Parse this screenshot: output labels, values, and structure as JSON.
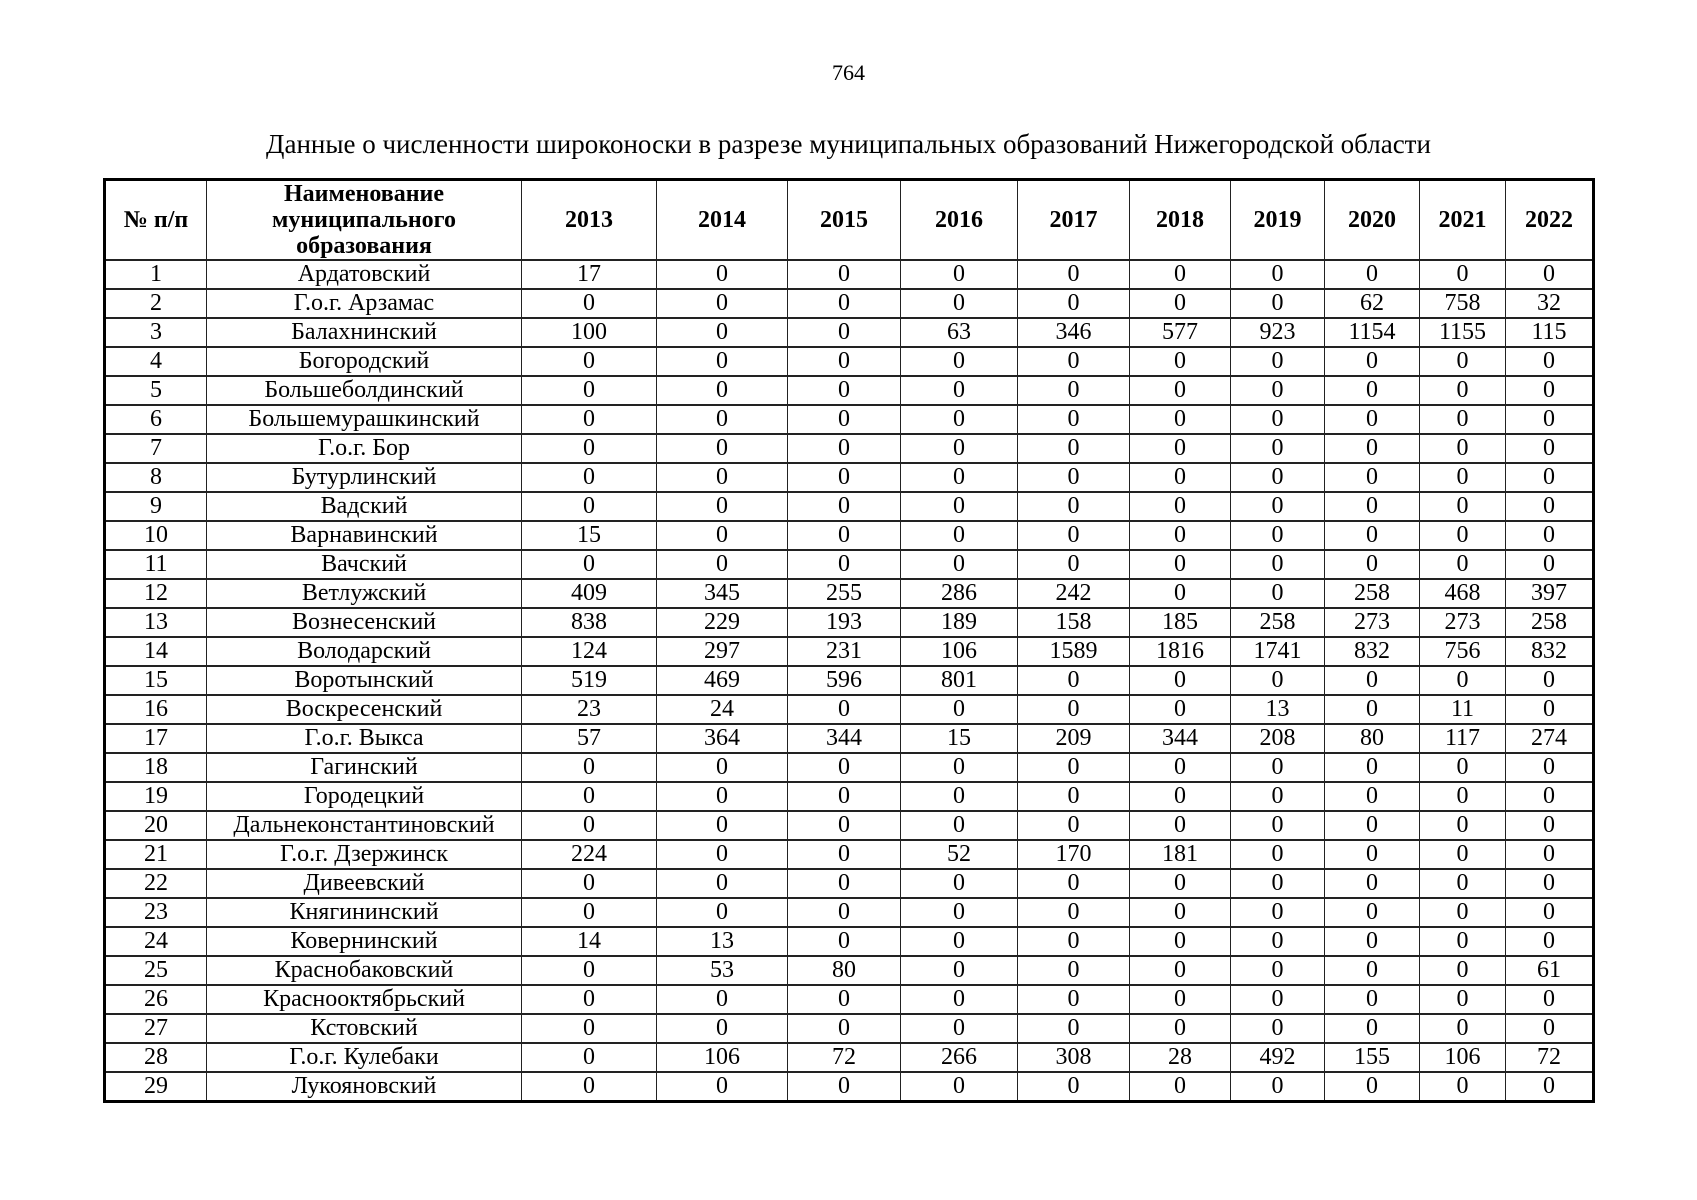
{
  "page": {
    "number": "764",
    "title": "Данные о численности широконоски в разрезе муниципальных образований Нижегородской области"
  },
  "table": {
    "headers": {
      "num": "№ п/п",
      "name": "Наименование муниципального образования",
      "years": [
        "2013",
        "2014",
        "2015",
        "2016",
        "2017",
        "2018",
        "2019",
        "2020",
        "2021",
        "2022"
      ]
    },
    "rows": [
      {
        "num": "1",
        "name": "Ардатовский",
        "values": [
          "17",
          "0",
          "0",
          "0",
          "0",
          "0",
          "0",
          "0",
          "0",
          "0"
        ]
      },
      {
        "num": "2",
        "name": "Г.о.г. Арзамас",
        "values": [
          "0",
          "0",
          "0",
          "0",
          "0",
          "0",
          "0",
          "62",
          "758",
          "32"
        ]
      },
      {
        "num": "3",
        "name": "Балахнинский",
        "values": [
          "100",
          "0",
          "0",
          "63",
          "346",
          "577",
          "923",
          "1154",
          "1155",
          "115"
        ]
      },
      {
        "num": "4",
        "name": "Богородский",
        "values": [
          "0",
          "0",
          "0",
          "0",
          "0",
          "0",
          "0",
          "0",
          "0",
          "0"
        ]
      },
      {
        "num": "5",
        "name": "Большеболдинский",
        "values": [
          "0",
          "0",
          "0",
          "0",
          "0",
          "0",
          "0",
          "0",
          "0",
          "0"
        ]
      },
      {
        "num": "6",
        "name": "Большемурашкинский",
        "values": [
          "0",
          "0",
          "0",
          "0",
          "0",
          "0",
          "0",
          "0",
          "0",
          "0"
        ]
      },
      {
        "num": "7",
        "name": "Г.о.г. Бор",
        "values": [
          "0",
          "0",
          "0",
          "0",
          "0",
          "0",
          "0",
          "0",
          "0",
          "0"
        ]
      },
      {
        "num": "8",
        "name": "Бутурлинский",
        "values": [
          "0",
          "0",
          "0",
          "0",
          "0",
          "0",
          "0",
          "0",
          "0",
          "0"
        ]
      },
      {
        "num": "9",
        "name": "Вадский",
        "values": [
          "0",
          "0",
          "0",
          "0",
          "0",
          "0",
          "0",
          "0",
          "0",
          "0"
        ]
      },
      {
        "num": "10",
        "name": "Варнавинский",
        "values": [
          "15",
          "0",
          "0",
          "0",
          "0",
          "0",
          "0",
          "0",
          "0",
          "0"
        ]
      },
      {
        "num": "11",
        "name": "Вачский",
        "values": [
          "0",
          "0",
          "0",
          "0",
          "0",
          "0",
          "0",
          "0",
          "0",
          "0"
        ]
      },
      {
        "num": "12",
        "name": "Ветлужский",
        "values": [
          "409",
          "345",
          "255",
          "286",
          "242",
          "0",
          "0",
          "258",
          "468",
          "397"
        ]
      },
      {
        "num": "13",
        "name": "Вознесенский",
        "values": [
          "838",
          "229",
          "193",
          "189",
          "158",
          "185",
          "258",
          "273",
          "273",
          "258"
        ]
      },
      {
        "num": "14",
        "name": "Володарский",
        "values": [
          "124",
          "297",
          "231",
          "106",
          "1589",
          "1816",
          "1741",
          "832",
          "756",
          "832"
        ]
      },
      {
        "num": "15",
        "name": "Воротынский",
        "values": [
          "519",
          "469",
          "596",
          "801",
          "0",
          "0",
          "0",
          "0",
          "0",
          "0"
        ]
      },
      {
        "num": "16",
        "name": "Воскресенский",
        "values": [
          "23",
          "24",
          "0",
          "0",
          "0",
          "0",
          "13",
          "0",
          "11",
          "0"
        ]
      },
      {
        "num": "17",
        "name": "Г.о.г. Выкса",
        "values": [
          "57",
          "364",
          "344",
          "15",
          "209",
          "344",
          "208",
          "80",
          "117",
          "274"
        ]
      },
      {
        "num": "18",
        "name": "Гагинский",
        "values": [
          "0",
          "0",
          "0",
          "0",
          "0",
          "0",
          "0",
          "0",
          "0",
          "0"
        ]
      },
      {
        "num": "19",
        "name": "Городецкий",
        "values": [
          "0",
          "0",
          "0",
          "0",
          "0",
          "0",
          "0",
          "0",
          "0",
          "0"
        ]
      },
      {
        "num": "20",
        "name": "Дальнеконстантиновский",
        "values": [
          "0",
          "0",
          "0",
          "0",
          "0",
          "0",
          "0",
          "0",
          "0",
          "0"
        ]
      },
      {
        "num": "21",
        "name": "Г.о.г. Дзержинск",
        "values": [
          "224",
          "0",
          "0",
          "52",
          "170",
          "181",
          "0",
          "0",
          "0",
          "0"
        ]
      },
      {
        "num": "22",
        "name": "Дивеевский",
        "values": [
          "0",
          "0",
          "0",
          "0",
          "0",
          "0",
          "0",
          "0",
          "0",
          "0"
        ]
      },
      {
        "num": "23",
        "name": "Княгининский",
        "values": [
          "0",
          "0",
          "0",
          "0",
          "0",
          "0",
          "0",
          "0",
          "0",
          "0"
        ]
      },
      {
        "num": "24",
        "name": "Ковернинский",
        "values": [
          "14",
          "13",
          "0",
          "0",
          "0",
          "0",
          "0",
          "0",
          "0",
          "0"
        ]
      },
      {
        "num": "25",
        "name": "Краснобаковский",
        "values": [
          "0",
          "53",
          "80",
          "0",
          "0",
          "0",
          "0",
          "0",
          "0",
          "61"
        ]
      },
      {
        "num": "26",
        "name": "Краснооктябрьский",
        "values": [
          "0",
          "0",
          "0",
          "0",
          "0",
          "0",
          "0",
          "0",
          "0",
          "0"
        ]
      },
      {
        "num": "27",
        "name": "Кстовский",
        "values": [
          "0",
          "0",
          "0",
          "0",
          "0",
          "0",
          "0",
          "0",
          "0",
          "0"
        ]
      },
      {
        "num": "28",
        "name": "Г.о.г. Кулебаки",
        "values": [
          "0",
          "106",
          "72",
          "266",
          "308",
          "28",
          "492",
          "155",
          "106",
          "72"
        ]
      },
      {
        "num": "29",
        "name": "Лукояновский",
        "values": [
          "0",
          "0",
          "0",
          "0",
          "0",
          "0",
          "0",
          "0",
          "0",
          "0"
        ]
      }
    ]
  }
}
